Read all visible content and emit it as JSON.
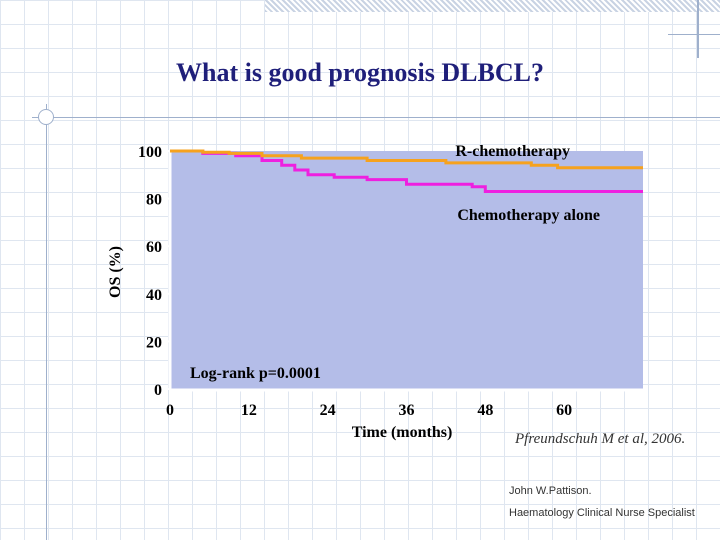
{
  "slide": {
    "title": "What is good prognosis DLBCL?",
    "citation": "Pfreundschuh M et al, 2006.",
    "author_name": "John W.Pattison.",
    "author_role": "Haematology Clinical Nurse Specialist"
  },
  "colors": {
    "plot_bg": "#b4bde8",
    "r_chemo": "#f6a21e",
    "chemo_alone": "#ee20e0",
    "title": "#1f1f7a"
  },
  "chart_data": {
    "type": "line",
    "title": "",
    "xlabel": "Time (months)",
    "ylabel": "OS (%)",
    "xlim": [
      0,
      72
    ],
    "ylim": [
      0,
      100
    ],
    "x_ticks": [
      0,
      12,
      24,
      36,
      48,
      60
    ],
    "y_ticks": [
      0,
      20,
      40,
      60,
      80,
      100
    ],
    "annotation": "Log-rank p=0.0001",
    "series": [
      {
        "name": "R-chemotherapy",
        "step": true,
        "points": [
          [
            0,
            100
          ],
          [
            5,
            100
          ],
          [
            5,
            99.5
          ],
          [
            9,
            99.5
          ],
          [
            9,
            99
          ],
          [
            14,
            99
          ],
          [
            14,
            98
          ],
          [
            20,
            98
          ],
          [
            20,
            97
          ],
          [
            30,
            97
          ],
          [
            30,
            96
          ],
          [
            42,
            96
          ],
          [
            42,
            95
          ],
          [
            55,
            95
          ],
          [
            55,
            94
          ],
          [
            59,
            94
          ],
          [
            59,
            93
          ],
          [
            72,
            93
          ]
        ]
      },
      {
        "name": "Chemotherapy alone",
        "step": true,
        "points": [
          [
            0,
            100
          ],
          [
            5,
            100
          ],
          [
            5,
            99
          ],
          [
            10,
            99
          ],
          [
            10,
            98
          ],
          [
            14,
            98
          ],
          [
            14,
            96
          ],
          [
            17,
            96
          ],
          [
            17,
            94
          ],
          [
            19,
            94
          ],
          [
            19,
            92
          ],
          [
            21,
            92
          ],
          [
            21,
            90
          ],
          [
            25,
            90
          ],
          [
            25,
            89
          ],
          [
            30,
            89
          ],
          [
            30,
            88
          ],
          [
            36,
            88
          ],
          [
            36,
            86
          ],
          [
            46,
            86
          ],
          [
            46,
            85
          ],
          [
            48,
            85
          ],
          [
            48,
            83
          ],
          [
            72,
            83
          ]
        ]
      }
    ]
  }
}
